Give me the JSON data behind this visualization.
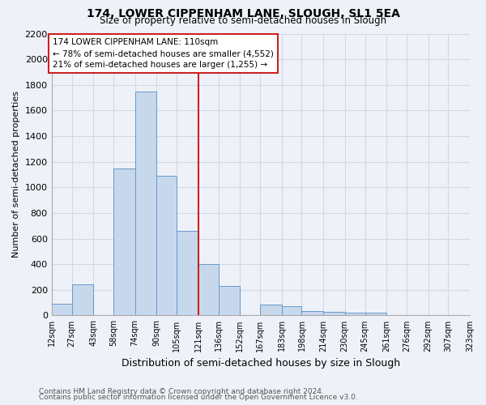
{
  "title": "174, LOWER CIPPENHAM LANE, SLOUGH, SL1 5EA",
  "subtitle": "Size of property relative to semi-detached houses in Slough",
  "xlabel": "Distribution of semi-detached houses by size in Slough",
  "ylabel": "Number of semi-detached properties",
  "annotation_title": "174 LOWER CIPPENHAM LANE: 110sqm",
  "annotation_line1": "← 78% of semi-detached houses are smaller (4,552)",
  "annotation_line2": "21% of semi-detached houses are larger (1,255) →",
  "footer1": "Contains HM Land Registry data © Crown copyright and database right 2024.",
  "footer2": "Contains public sector information licensed under the Open Government Licence v3.0.",
  "bar_color": "#c8d8ec",
  "bar_edge_color": "#6699cc",
  "highlight_color": "#cc2222",
  "vline_x": 121,
  "bin_edges": [
    12,
    27,
    43,
    58,
    74,
    90,
    105,
    121,
    136,
    152,
    167,
    183,
    198,
    214,
    230,
    245,
    261,
    276,
    292,
    307,
    323
  ],
  "bin_labels": [
    "12sqm",
    "27sqm",
    "43sqm",
    "58sqm",
    "74sqm",
    "90sqm",
    "105sqm",
    "121sqm",
    "136sqm",
    "152sqm",
    "167sqm",
    "183sqm",
    "198sqm",
    "214sqm",
    "230sqm",
    "245sqm",
    "261sqm",
    "276sqm",
    "292sqm",
    "307sqm",
    "323sqm"
  ],
  "counts": [
    90,
    240,
    0,
    1150,
    1750,
    1090,
    660,
    400,
    230,
    0,
    85,
    75,
    35,
    30,
    20,
    20,
    0,
    0,
    0,
    0
  ],
  "ylim": [
    0,
    2200
  ],
  "yticks": [
    0,
    200,
    400,
    600,
    800,
    1000,
    1200,
    1400,
    1600,
    1800,
    2000,
    2200
  ],
  "background_color": "#eef2f8",
  "box_color": "#ffffff",
  "grid_color": "#d0d8e8"
}
